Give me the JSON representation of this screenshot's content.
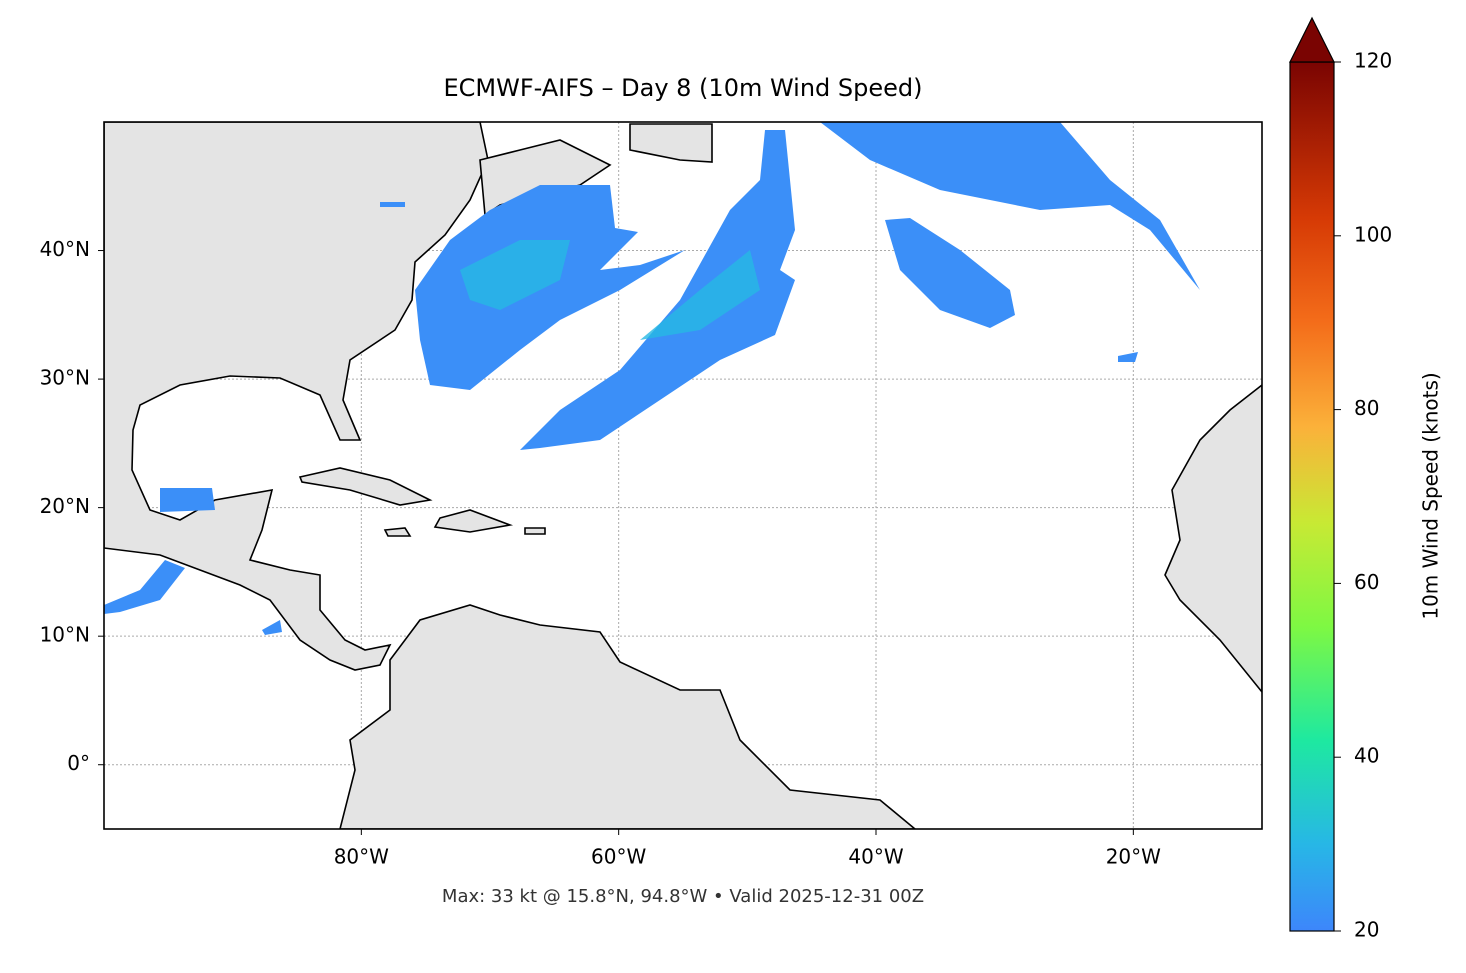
{
  "map": {
    "title": "ECMWF-AIFS – Day 8 (10m Wind Speed)",
    "note": "Max: 33 kt @ 15.8°N, 94.8°W • Valid 2025-12-31 00Z",
    "xlim": [
      -100,
      -10
    ],
    "ylim": [
      -5,
      50
    ],
    "xticks": [
      {
        "value": -80,
        "label": "80°W"
      },
      {
        "value": -60,
        "label": "60°W"
      },
      {
        "value": -40,
        "label": "40°W"
      },
      {
        "value": -20,
        "label": "20°W"
      }
    ],
    "yticks": [
      {
        "value": 0,
        "label": "0°"
      },
      {
        "value": 10,
        "label": "10°N"
      },
      {
        "value": 20,
        "label": "20°N"
      },
      {
        "value": 30,
        "label": "30°N"
      },
      {
        "value": 40,
        "label": "40°N"
      }
    ],
    "grid": true,
    "colorbar": {
      "label": "10m Wind Speed (knots)",
      "lim": [
        20,
        120
      ],
      "ticks": [
        20,
        40,
        60,
        80,
        100,
        120
      ]
    }
  }
}
